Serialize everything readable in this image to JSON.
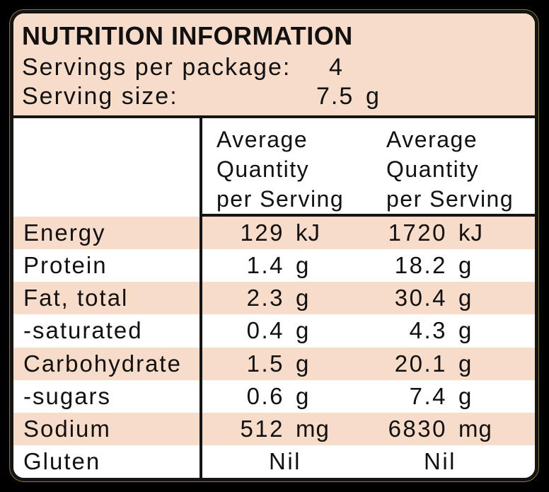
{
  "panel": {
    "title": "NUTRITION INFORMATION",
    "servings_per_package": {
      "label": "Servings per package:",
      "value": "4"
    },
    "serving_size": {
      "label": "Serving size:",
      "value": "7.5",
      "unit": "g"
    }
  },
  "table": {
    "col1_header": [
      "Average",
      "Quantity",
      "per Serving"
    ],
    "col2_header": [
      "Average",
      "Quantity",
      "per Serving"
    ],
    "rows": [
      {
        "label": "Energy",
        "col1": {
          "value": "129",
          "unit": "kJ"
        },
        "col2": {
          "value": "1720",
          "unit": "kJ"
        }
      },
      {
        "label": "Protein",
        "col1": {
          "value": "1.4",
          "unit": "g"
        },
        "col2": {
          "value": "18.2",
          "unit": "g"
        }
      },
      {
        "label": "Fat, total",
        "col1": {
          "value": "2.3",
          "unit": "g"
        },
        "col2": {
          "value": "30.4",
          "unit": "g"
        }
      },
      {
        "label": "-saturated",
        "col1": {
          "value": "0.4",
          "unit": "g"
        },
        "col2": {
          "value": "4.3",
          "unit": "g"
        }
      },
      {
        "label": "Carbohydrate",
        "col1": {
          "value": "1.5",
          "unit": "g"
        },
        "col2": {
          "value": "20.1",
          "unit": "g"
        }
      },
      {
        "label": "-sugars",
        "col1": {
          "value": "0.6",
          "unit": "g"
        },
        "col2": {
          "value": "7.4",
          "unit": "g"
        }
      },
      {
        "label": "Sodium",
        "col1": {
          "value": "512",
          "unit": "mg"
        },
        "col2": {
          "value": "6830",
          "unit": "mg"
        }
      },
      {
        "label": "Gluten",
        "col1": {
          "value": "Nil",
          "unit": ""
        },
        "col2": {
          "value": "Nil",
          "unit": ""
        }
      }
    ]
  },
  "colors": {
    "page_background": "#000000",
    "panel_background": "#f8dcca",
    "row_highlight": "#f8dcca",
    "row_alt": "#ffffff",
    "border": "#151515",
    "text": "#111111"
  }
}
